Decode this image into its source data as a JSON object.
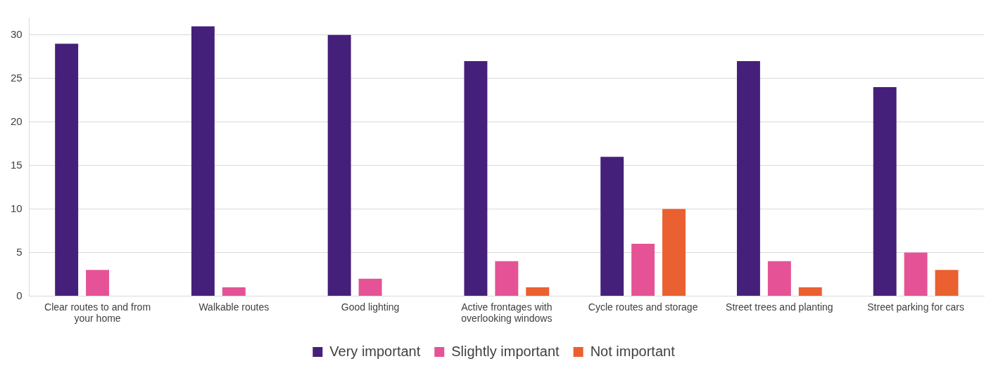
{
  "chart_data": {
    "type": "bar",
    "categories": [
      "Clear routes to and from your home",
      "Walkable routes",
      "Good lighting",
      "Active frontages with overlooking windows",
      "Cycle routes and storage",
      "Street trees and planting",
      "Street parking for cars"
    ],
    "series": [
      {
        "name": "Very important",
        "color": "#45207a",
        "values": [
          29,
          31,
          30,
          27,
          16,
          27,
          24
        ]
      },
      {
        "name": "Slightly important",
        "color": "#e55396",
        "values": [
          3,
          1,
          2,
          4,
          6,
          4,
          5
        ]
      },
      {
        "name": "Not important",
        "color": "#ea6030",
        "values": [
          0,
          0,
          0,
          1,
          10,
          1,
          3
        ]
      }
    ],
    "ylim": [
      0,
      32
    ],
    "yticks": [
      0,
      5,
      10,
      15,
      20,
      25,
      30
    ],
    "grid": "y",
    "legend": "bottom"
  }
}
